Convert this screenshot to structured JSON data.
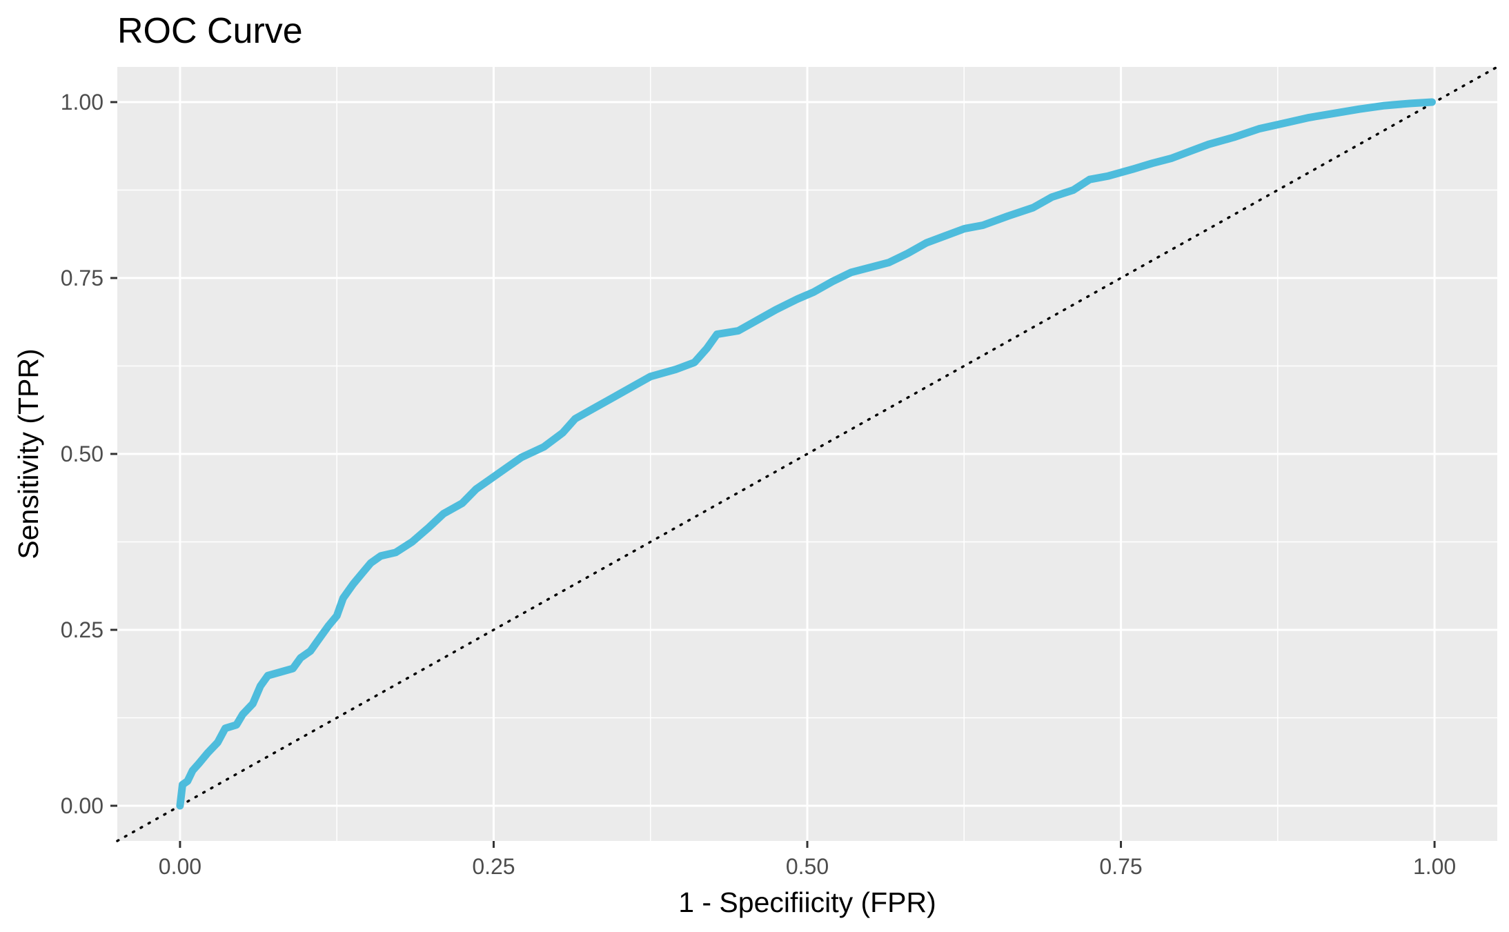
{
  "chart_data": {
    "type": "line",
    "title": "ROC Curve",
    "xlabel": "1 - Specifiicity (FPR)",
    "ylabel": "Sensitivity (TPR)",
    "xlim": [
      -0.05,
      1.05
    ],
    "ylim": [
      -0.05,
      1.05
    ],
    "x_ticks": [
      0,
      0.25,
      0.5,
      0.75,
      1
    ],
    "x_tick_labels": [
      "0.00",
      "0.25",
      "0.50",
      "0.75",
      "1.00"
    ],
    "y_ticks": [
      0,
      0.25,
      0.5,
      0.75,
      1
    ],
    "y_tick_labels": [
      "0.00",
      "0.25",
      "0.50",
      "0.75",
      "1.00"
    ],
    "grid": true,
    "panel_background": "#ebebeb",
    "grid_color": "#ffffff",
    "series": [
      {
        "color": "#4ebcdc",
        "points": [
          [
            0.0,
            0.0
          ],
          [
            0.002,
            0.03
          ],
          [
            0.006,
            0.035
          ],
          [
            0.01,
            0.05
          ],
          [
            0.015,
            0.06
          ],
          [
            0.022,
            0.075
          ],
          [
            0.03,
            0.09
          ],
          [
            0.036,
            0.11
          ],
          [
            0.045,
            0.115
          ],
          [
            0.05,
            0.13
          ],
          [
            0.058,
            0.145
          ],
          [
            0.064,
            0.17
          ],
          [
            0.07,
            0.185
          ],
          [
            0.08,
            0.19
          ],
          [
            0.09,
            0.195
          ],
          [
            0.096,
            0.21
          ],
          [
            0.104,
            0.22
          ],
          [
            0.112,
            0.24
          ],
          [
            0.118,
            0.255
          ],
          [
            0.125,
            0.27
          ],
          [
            0.13,
            0.295
          ],
          [
            0.138,
            0.315
          ],
          [
            0.145,
            0.33
          ],
          [
            0.152,
            0.345
          ],
          [
            0.16,
            0.355
          ],
          [
            0.172,
            0.36
          ],
          [
            0.185,
            0.375
          ],
          [
            0.198,
            0.395
          ],
          [
            0.21,
            0.415
          ],
          [
            0.225,
            0.43
          ],
          [
            0.236,
            0.45
          ],
          [
            0.248,
            0.465
          ],
          [
            0.26,
            0.48
          ],
          [
            0.272,
            0.495
          ],
          [
            0.29,
            0.51
          ],
          [
            0.305,
            0.53
          ],
          [
            0.315,
            0.55
          ],
          [
            0.33,
            0.565
          ],
          [
            0.345,
            0.58
          ],
          [
            0.36,
            0.595
          ],
          [
            0.375,
            0.61
          ],
          [
            0.395,
            0.62
          ],
          [
            0.41,
            0.63
          ],
          [
            0.42,
            0.65
          ],
          [
            0.428,
            0.67
          ],
          [
            0.445,
            0.675
          ],
          [
            0.46,
            0.69
          ],
          [
            0.475,
            0.705
          ],
          [
            0.492,
            0.72
          ],
          [
            0.505,
            0.73
          ],
          [
            0.52,
            0.745
          ],
          [
            0.535,
            0.758
          ],
          [
            0.55,
            0.765
          ],
          [
            0.565,
            0.772
          ],
          [
            0.58,
            0.785
          ],
          [
            0.595,
            0.8
          ],
          [
            0.61,
            0.81
          ],
          [
            0.625,
            0.82
          ],
          [
            0.64,
            0.825
          ],
          [
            0.66,
            0.838
          ],
          [
            0.68,
            0.85
          ],
          [
            0.695,
            0.865
          ],
          [
            0.712,
            0.875
          ],
          [
            0.725,
            0.89
          ],
          [
            0.74,
            0.895
          ],
          [
            0.76,
            0.905
          ],
          [
            0.775,
            0.913
          ],
          [
            0.79,
            0.92
          ],
          [
            0.805,
            0.93
          ],
          [
            0.82,
            0.94
          ],
          [
            0.84,
            0.95
          ],
          [
            0.86,
            0.962
          ],
          [
            0.88,
            0.97
          ],
          [
            0.9,
            0.978
          ],
          [
            0.92,
            0.984
          ],
          [
            0.94,
            0.99
          ],
          [
            0.96,
            0.995
          ],
          [
            0.98,
            0.998
          ],
          [
            0.998,
            1.0
          ]
        ]
      }
    ],
    "reference_line": {
      "points": [
        [
          -0.05,
          -0.05
        ],
        [
          1.05,
          1.05
        ]
      ],
      "style": "dotted",
      "color": "#000000"
    }
  }
}
